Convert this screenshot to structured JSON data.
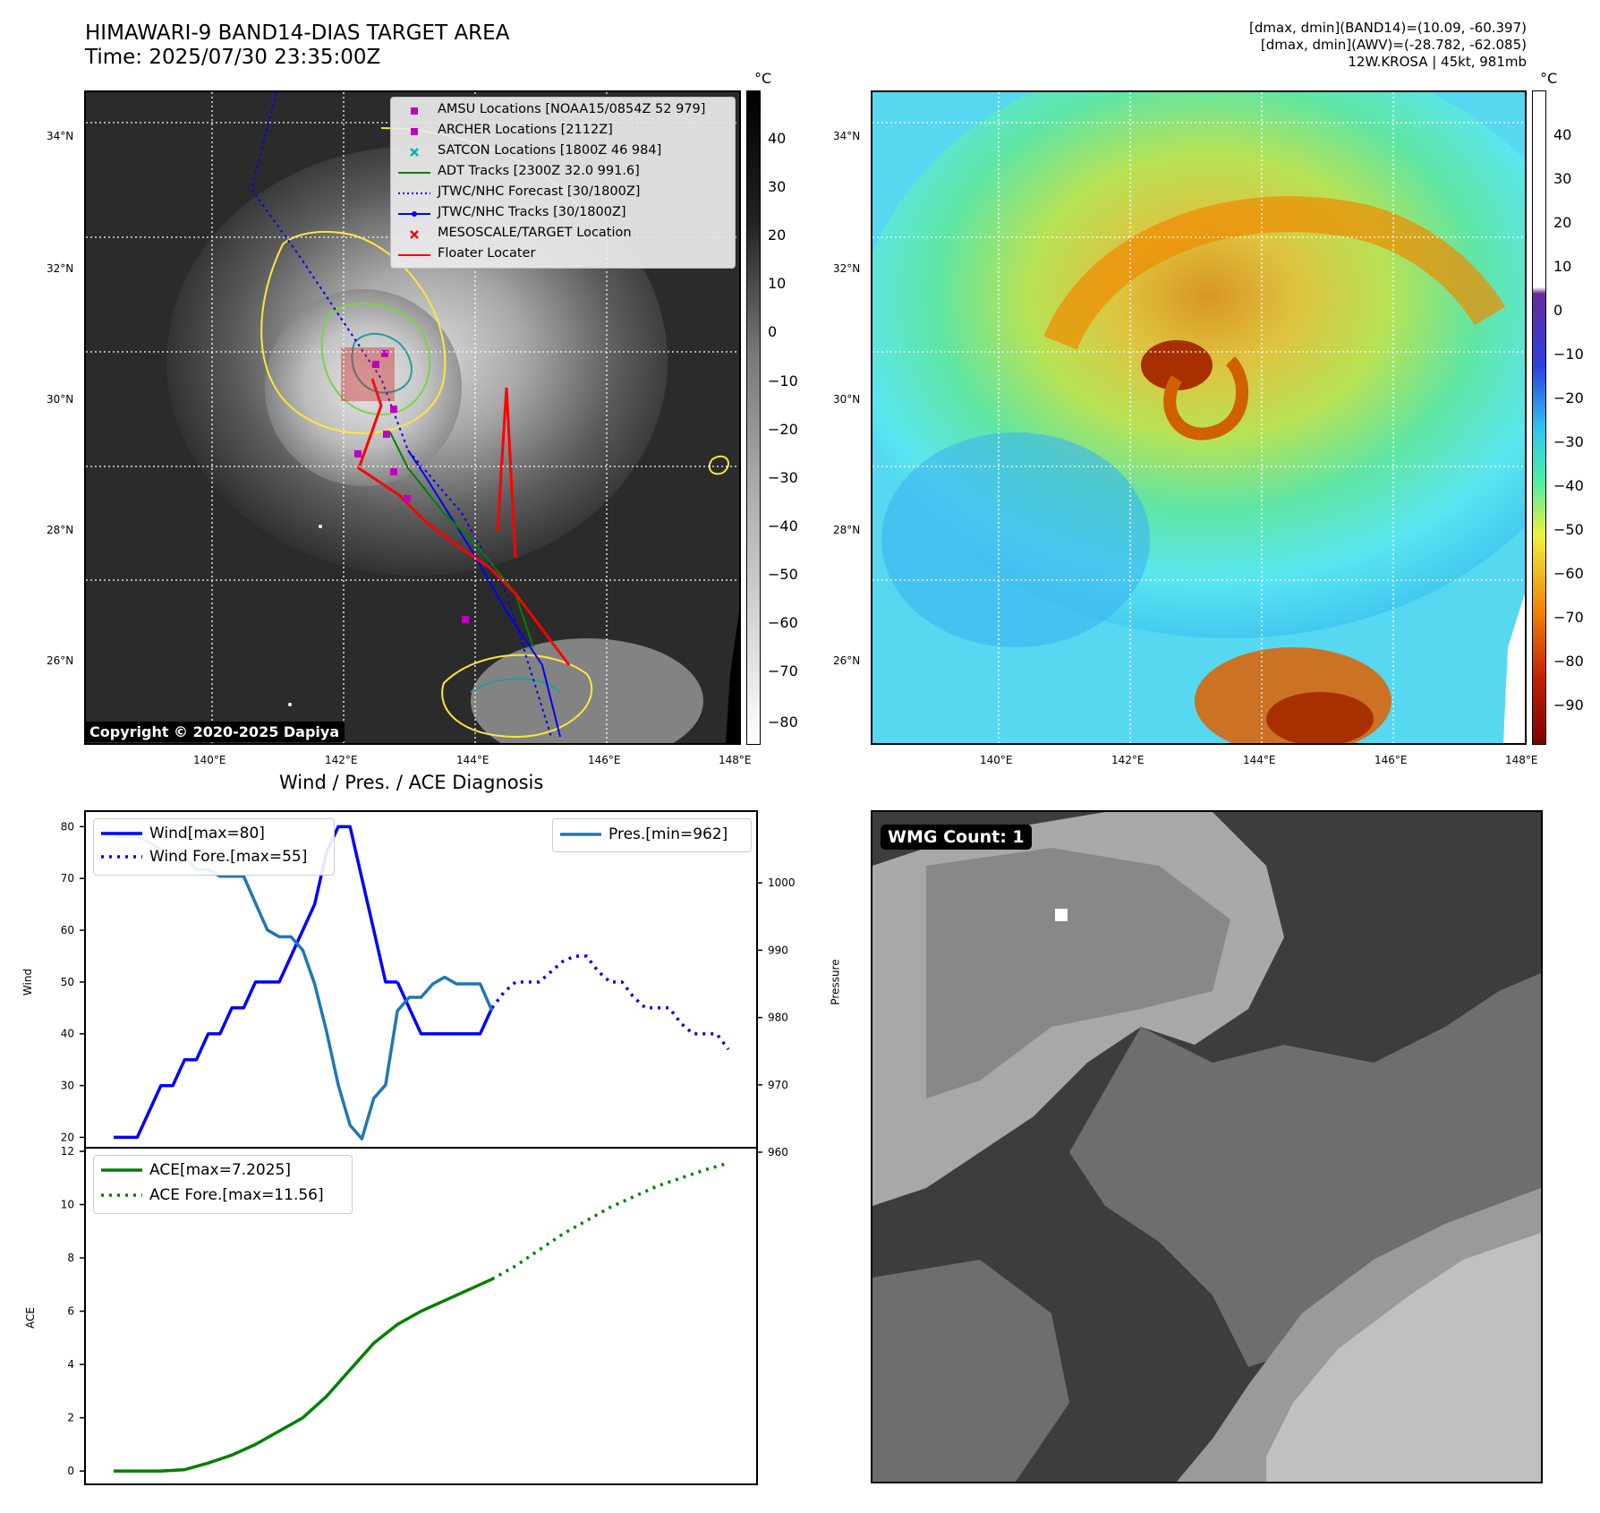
{
  "header": {
    "title_line1": "HIMAWARI-9 BAND14-DIAS TARGET AREA",
    "title_line2": "Time: 2025/07/30 23:35:00Z",
    "info_line1": "[dmax, dmin](BAND14)=(10.09, -60.397)",
    "info_line2": "[dmax, dmin](AWV)=(-28.782, -62.085)",
    "info_line3": "12W.KROSA | 45kt, 981mb"
  },
  "map": {
    "lat_labels": [
      "34°N",
      "32°N",
      "30°N",
      "28°N",
      "26°N"
    ],
    "lon_labels": [
      "140°E",
      "142°E",
      "144°E",
      "146°E",
      "148°E"
    ],
    "copyright": "Copyright © 2020-2025 Dapiya",
    "cbar_unit": "°C",
    "cbar_left_ticks": [
      "40",
      "30",
      "20",
      "10",
      "0",
      "−10",
      "−20",
      "−30",
      "−40",
      "−50",
      "−60",
      "−70",
      "−80"
    ],
    "cbar_right_ticks": [
      "40",
      "30",
      "20",
      "10",
      "0",
      "−10",
      "−20",
      "−30",
      "−40",
      "−50",
      "−60",
      "−70",
      "−80",
      "−90"
    ],
    "legend": [
      {
        "label": "AMSU Locations [NOAA15/0854Z 52 979]",
        "color": "#c000c0",
        "marker": "square"
      },
      {
        "label": "ARCHER Locations [2112Z]",
        "color": "#c000c0",
        "marker": "square"
      },
      {
        "label": "SATCON Locations [1800Z 46 984]",
        "color": "#00b0b0",
        "marker": "x"
      },
      {
        "label": "ADT Tracks [2300Z 32.0 991.6]",
        "color": "#008000",
        "marker": "line"
      },
      {
        "label": "JTWC/NHC Forecast [30/1800Z]",
        "color": "#0000ff",
        "marker": "dotted"
      },
      {
        "label": "JTWC/NHC Tracks [30/1800Z]",
        "color": "#0000ff",
        "marker": "line-dot"
      },
      {
        "label": "MESOSCALE/TARGET Location",
        "color": "#ff0000",
        "marker": "x"
      },
      {
        "label": "Floater Locater",
        "color": "#ff0000",
        "marker": "line"
      }
    ]
  },
  "wmg": {
    "label": "WMG Count: 1"
  },
  "chart_data": [
    {
      "type": "line",
      "title": "Wind / Pres. / ACE Diagnosis",
      "ylabel": "Wind",
      "ylim": [
        18,
        83
      ],
      "y2label": "Pressure",
      "y2lim": [
        960,
        1010
      ],
      "y_ticks": [
        80,
        70,
        60,
        50,
        40,
        30,
        20
      ],
      "y2_ticks": [
        1000,
        990,
        980,
        970,
        960
      ],
      "legend": [
        "Wind[max=80]",
        "Wind Fore.[max=55]",
        "Pres.[min=962]"
      ],
      "series": [
        {
          "name": "Wind[max=80]",
          "color": "#0000ff",
          "style": "solid",
          "x": [
            0,
            1,
            2,
            3,
            4,
            5,
            6,
            7,
            8,
            9,
            10,
            11,
            12,
            13,
            14,
            15,
            16,
            17,
            18,
            19,
            20,
            21,
            22,
            23,
            24
          ],
          "values": [
            20,
            20,
            20,
            25,
            30,
            30,
            35,
            35,
            40,
            40,
            45,
            45,
            50,
            50,
            50,
            55,
            60,
            65,
            75,
            80,
            80,
            70,
            60,
            50,
            50
          ]
        },
        {
          "name": "Wind (cont.)",
          "color": "#0000ff",
          "style": "solid",
          "x": [
            24,
            25,
            26,
            27,
            28,
            29,
            30,
            31,
            32
          ],
          "values": [
            50,
            45,
            40,
            40,
            40,
            40,
            40,
            40,
            45
          ]
        },
        {
          "name": "Wind Fore.[max=55]",
          "color": "#0000ff",
          "style": "dotted",
          "x": [
            32,
            33,
            34,
            35,
            36,
            37,
            38,
            39,
            40,
            41,
            42,
            43,
            44,
            45,
            46,
            47,
            48,
            49,
            50,
            51,
            52
          ],
          "values": [
            45,
            48,
            50,
            50,
            50,
            52,
            54,
            55,
            55,
            52,
            50,
            50,
            47,
            45,
            45,
            45,
            42,
            40,
            40,
            40,
            37
          ]
        },
        {
          "name": "Pres.[min=962]",
          "color": "#1f77b4",
          "style": "solid",
          "axis": "y2",
          "x": [
            0,
            1,
            2,
            3,
            4,
            5,
            6,
            7,
            8,
            9,
            10,
            11,
            12,
            13,
            14,
            15,
            16,
            17,
            18,
            19,
            20,
            21,
            22,
            23,
            24,
            25,
            26,
            27,
            28,
            29,
            30,
            31,
            32
          ],
          "values": [
            1007,
            1007,
            1007,
            1006,
            1005,
            1004,
            1004,
            1002,
            1002,
            1001,
            1001,
            1001,
            997,
            993,
            992,
            992,
            990,
            985,
            978,
            970,
            964,
            962,
            968,
            970,
            981,
            983,
            983,
            985,
            986,
            985,
            985,
            985,
            981
          ]
        }
      ]
    },
    {
      "type": "line",
      "ylabel": "ACE",
      "ylim": [
        -0.5,
        12
      ],
      "y_ticks": [
        12,
        10,
        8,
        6,
        4,
        2,
        0
      ],
      "legend": [
        "ACE[max=7.2025]",
        "ACE Fore.[max=11.56]"
      ],
      "series": [
        {
          "name": "ACE[max=7.2025]",
          "color": "#008000",
          "style": "solid",
          "x": [
            0,
            2,
            4,
            6,
            8,
            10,
            12,
            14,
            16,
            18,
            20,
            22,
            24,
            26,
            28,
            30,
            32
          ],
          "values": [
            0,
            0,
            0,
            0.05,
            0.3,
            0.6,
            1.0,
            1.5,
            2.0,
            2.8,
            3.8,
            4.8,
            5.5,
            6.0,
            6.4,
            6.8,
            7.2
          ]
        },
        {
          "name": "ACE Fore.[max=11.56]",
          "color": "#008000",
          "style": "dotted",
          "x": [
            32,
            34,
            36,
            38,
            40,
            42,
            44,
            46,
            48,
            50,
            52
          ],
          "values": [
            7.2,
            7.7,
            8.3,
            8.9,
            9.4,
            9.9,
            10.3,
            10.7,
            11.0,
            11.3,
            11.56
          ]
        }
      ]
    }
  ]
}
